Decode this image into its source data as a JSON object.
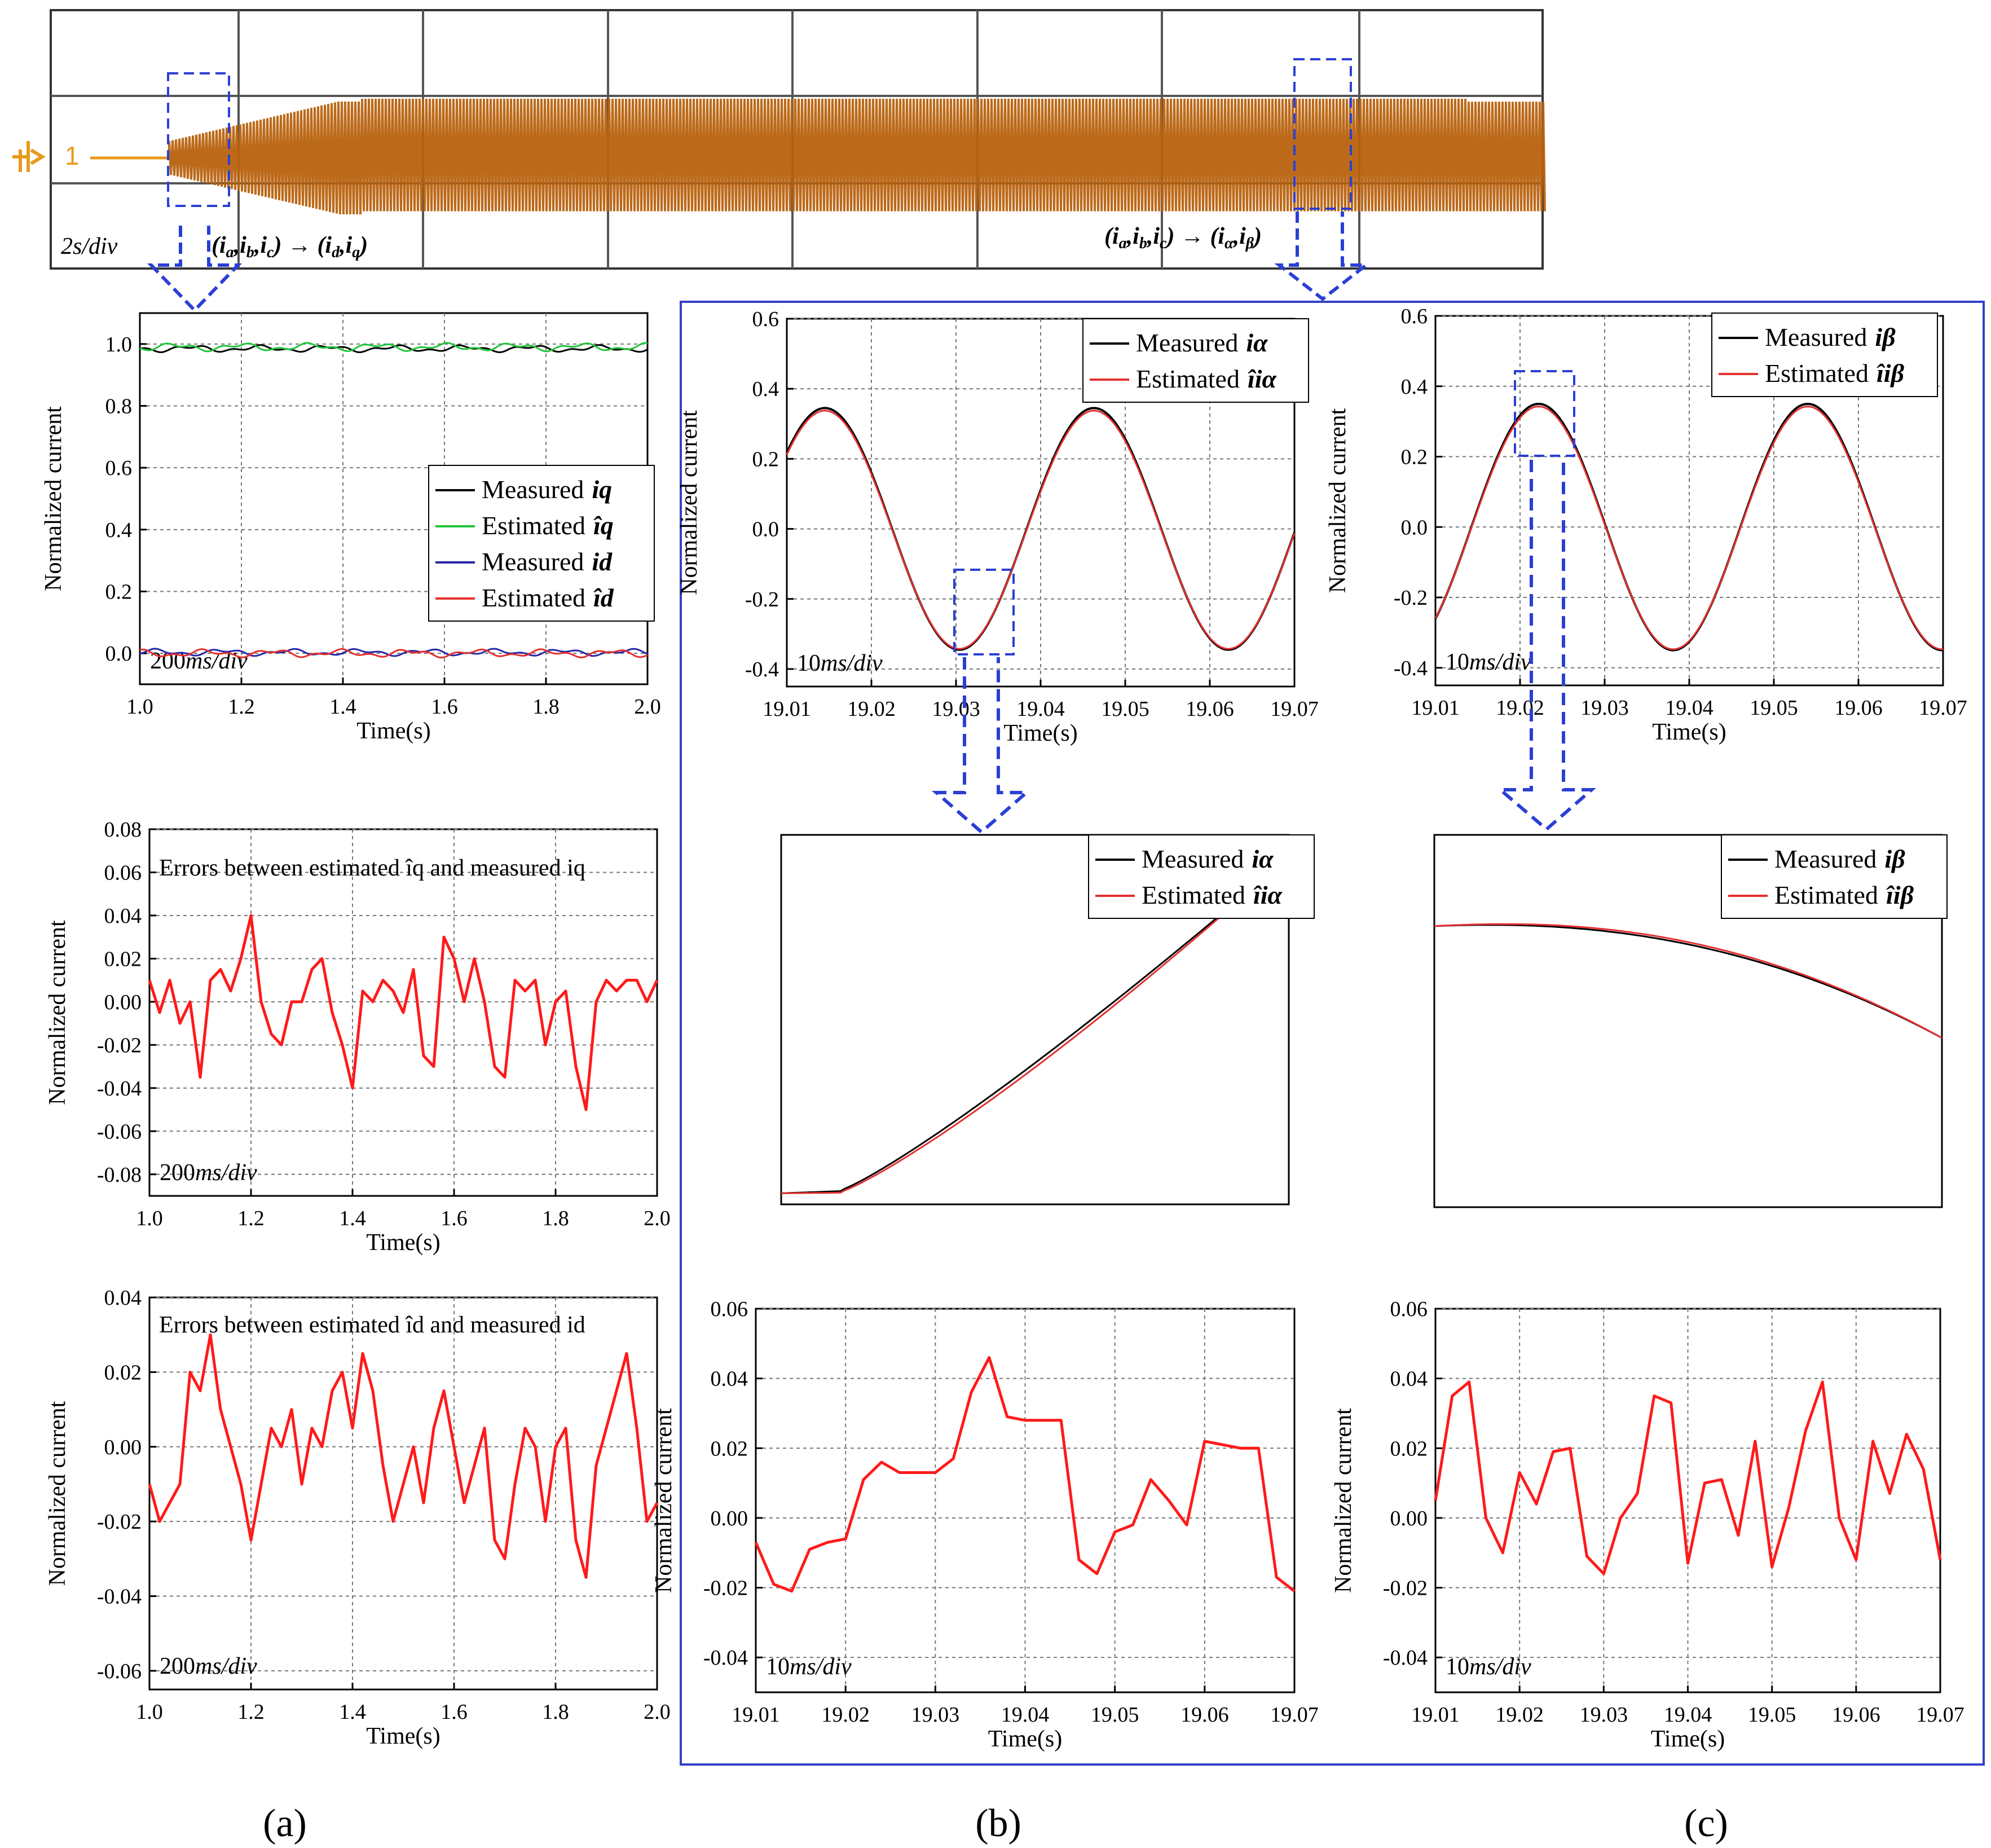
{
  "figure": {
    "panel_labels": [
      "(a)",
      "(b)",
      "(c)"
    ],
    "colors": {
      "measured": "#000000",
      "estimated_green": "#1fc53a",
      "measured_blue": "#2727a8",
      "estimated_red": "#e53030",
      "error_red": "#ff1a1a",
      "osc_trace": "#b8620e",
      "osc_grid": "#555555",
      "zoom_box": "#2a3fd6"
    },
    "oscilloscope": {
      "timescale": "2s/div",
      "channel_label": "1",
      "annotation_left": "(ia,ib,ic)→(id,iq)",
      "annotation_right": "(ia,ib,ic)→(iα,iβ)"
    }
  },
  "chart_data": [
    {
      "id": "oscilloscope",
      "type": "line",
      "title": "",
      "xlabel": "",
      "ylabel": "",
      "timescale": "2s/div",
      "divisions_x": 8,
      "divisions_y": 3,
      "description_series": [
        {
          "name": "phase current",
          "start_div": 0.58,
          "ramp_end_div": 1.6
        }
      ]
    },
    {
      "id": "a1",
      "type": "line",
      "xlabel": "Time(s)",
      "ylabel": "Normalized current",
      "xlim": [
        1.0,
        2.0
      ],
      "ylim": [
        -0.1,
        1.1
      ],
      "xticks": [
        "1.0",
        "1.2",
        "1.4",
        "1.6",
        "1.8",
        "2.0"
      ],
      "yticks": [
        "0.0",
        "0.2",
        "0.4",
        "0.6",
        "0.8",
        "1.0"
      ],
      "timescale": "200ms/div",
      "legend": [
        "Measured",
        "Estimated",
        "Measured",
        "Estimated"
      ],
      "legend_symbols": [
        "iq",
        "îq",
        "id",
        "îd"
      ],
      "series": [
        {
          "name": "Measured iq",
          "base": 0.985,
          "amp": 0.012
        },
        {
          "name": "Estimated îq",
          "base": 0.99,
          "amp": 0.014
        },
        {
          "name": "Measured id",
          "base": 0.003,
          "amp": 0.012
        },
        {
          "name": "Estimated îd",
          "base": 0.0,
          "amp": 0.014
        }
      ]
    },
    {
      "id": "a2",
      "type": "line",
      "xlabel": "Time(s)",
      "ylabel": "Normalized current",
      "xlim": [
        1.0,
        2.0
      ],
      "ylim": [
        -0.09,
        0.08
      ],
      "xticks": [
        "1.0",
        "1.2",
        "1.4",
        "1.6",
        "1.8",
        "2.0"
      ],
      "yticks": [
        "0.08",
        "0.06",
        "0.04",
        "0.02",
        "0.00",
        "-0.02",
        "-0.04",
        "-0.06",
        "-0.08"
      ],
      "timescale": "200ms/div",
      "annotation": "Errors between estimated îq and measured iq",
      "x": [
        1.0,
        1.02,
        1.04,
        1.06,
        1.08,
        1.1,
        1.12,
        1.14,
        1.16,
        1.18,
        1.2,
        1.22,
        1.24,
        1.26,
        1.28,
        1.3,
        1.32,
        1.34,
        1.36,
        1.38,
        1.4,
        1.42,
        1.44,
        1.46,
        1.48,
        1.5,
        1.52,
        1.54,
        1.56,
        1.58,
        1.6,
        1.62,
        1.64,
        1.66,
        1.68,
        1.7,
        1.72,
        1.74,
        1.76,
        1.78,
        1.8,
        1.82,
        1.84,
        1.86,
        1.88,
        1.9,
        1.92,
        1.94,
        1.96,
        1.98,
        2.0
      ],
      "values": [
        0.01,
        -0.005,
        0.01,
        -0.01,
        0.0,
        -0.035,
        0.01,
        0.015,
        0.005,
        0.02,
        0.04,
        0.0,
        -0.015,
        -0.02,
        0.0,
        0.0,
        0.015,
        0.02,
        -0.005,
        -0.02,
        -0.04,
        0.005,
        0.0,
        0.01,
        0.005,
        -0.005,
        0.015,
        -0.025,
        -0.03,
        0.03,
        0.02,
        0.0,
        0.02,
        0.0,
        -0.03,
        -0.035,
        0.01,
        0.005,
        0.01,
        -0.02,
        0.0,
        0.005,
        -0.03,
        -0.05,
        0.0,
        0.01,
        0.005,
        0.01,
        0.01,
        0.0,
        0.01
      ]
    },
    {
      "id": "a3",
      "type": "line",
      "xlabel": "Time(s)",
      "ylabel": "Normalized current",
      "xlim": [
        1.0,
        2.0
      ],
      "ylim": [
        -0.065,
        0.04
      ],
      "xticks": [
        "1.0",
        "1.2",
        "1.4",
        "1.6",
        "1.8",
        "2.0"
      ],
      "yticks": [
        "0.04",
        "0.02",
        "0.00",
        "-0.02",
        "-0.04",
        "-0.06"
      ],
      "timescale": "200ms/div",
      "annotation": "Errors between estimated îd and measured id",
      "x": [
        1.0,
        1.02,
        1.04,
        1.06,
        1.08,
        1.1,
        1.12,
        1.14,
        1.16,
        1.18,
        1.2,
        1.22,
        1.24,
        1.26,
        1.28,
        1.3,
        1.32,
        1.34,
        1.36,
        1.38,
        1.4,
        1.42,
        1.44,
        1.46,
        1.48,
        1.5,
        1.52,
        1.54,
        1.56,
        1.58,
        1.6,
        1.62,
        1.64,
        1.66,
        1.68,
        1.7,
        1.72,
        1.74,
        1.76,
        1.78,
        1.8,
        1.82,
        1.84,
        1.86,
        1.88,
        1.9,
        1.92,
        1.94,
        1.96,
        1.98,
        2.0
      ],
      "values": [
        -0.01,
        -0.02,
        -0.015,
        -0.01,
        0.02,
        0.015,
        0.03,
        0.01,
        0.0,
        -0.01,
        -0.025,
        -0.01,
        0.005,
        0.0,
        0.01,
        -0.01,
        0.005,
        0.0,
        0.015,
        0.02,
        0.005,
        0.025,
        0.015,
        -0.005,
        -0.02,
        -0.01,
        0.0,
        -0.015,
        0.005,
        0.015,
        0.0,
        -0.015,
        -0.005,
        0.005,
        -0.025,
        -0.03,
        -0.01,
        0.005,
        0.0,
        -0.02,
        0.0,
        0.005,
        -0.025,
        -0.035,
        -0.005,
        0.005,
        0.015,
        0.025,
        0.005,
        -0.02,
        -0.015
      ]
    },
    {
      "id": "b1",
      "type": "line",
      "xlabel": "Time(s)",
      "ylabel": "Normalized current",
      "xlim": [
        19.01,
        19.07
      ],
      "ylim": [
        -0.45,
        0.6
      ],
      "xticks": [
        "19.01",
        "19.02",
        "19.03",
        "19.04",
        "19.05",
        "19.06",
        "19.07"
      ],
      "yticks": [
        "0.6",
        "0.4",
        "0.2",
        "0.0",
        "-0.2",
        "-0.4"
      ],
      "timescale": "10ms/div",
      "legend": [
        "Measured",
        "Estimated"
      ],
      "legend_symbols": [
        "iα",
        "îiα"
      ],
      "series": [
        {
          "name": "Measured iα",
          "amplitude": 0.345,
          "period_s": 0.0318,
          "peak_time": 19.0145
        },
        {
          "name": "Estimated îiα",
          "amplitude": 0.34,
          "period_s": 0.0318,
          "peak_time": 19.0145
        }
      ]
    },
    {
      "id": "c1",
      "type": "line",
      "xlabel": "Time(s)",
      "ylabel": "Normalized current",
      "xlim": [
        19.01,
        19.07
      ],
      "ylim": [
        -0.45,
        0.6
      ],
      "xticks": [
        "19.01",
        "19.02",
        "19.03",
        "19.04",
        "19.05",
        "19.06",
        "19.07"
      ],
      "yticks": [
        "0.6",
        "0.4",
        "0.2",
        "0.0",
        "-0.2",
        "-0.4"
      ],
      "timescale": "10ms/div",
      "legend": [
        "Measured",
        "Estimated"
      ],
      "legend_symbols": [
        "iβ",
        "îiβ"
      ],
      "series": [
        {
          "name": "Measured iβ",
          "amplitude": 0.35,
          "period_s": 0.0318,
          "peak_time": 19.0222
        },
        {
          "name": "Estimated îiβ",
          "amplitude": 0.345,
          "period_s": 0.0318,
          "peak_time": 19.0222
        }
      ]
    },
    {
      "id": "b2",
      "type": "line",
      "xlabel": "",
      "ylabel": "",
      "legend": [
        "Measured",
        "Estimated"
      ],
      "legend_symbols": [
        "iα",
        "îiα"
      ]
    },
    {
      "id": "c2",
      "type": "line",
      "xlabel": "",
      "ylabel": "",
      "legend": [
        "Measured",
        "Estimated"
      ],
      "legend_symbols": [
        "iβ",
        "îiβ"
      ]
    },
    {
      "id": "b3",
      "type": "line",
      "xlabel": "Time(s)",
      "ylabel": "Normalized current",
      "xlim": [
        19.01,
        19.07
      ],
      "ylim": [
        -0.05,
        0.06
      ],
      "xticks": [
        "19.01",
        "19.02",
        "19.03",
        "19.04",
        "19.05",
        "19.06",
        "19.07"
      ],
      "yticks": [
        "0.06",
        "0.04",
        "0.02",
        "0.00",
        "-0.02",
        "-0.04"
      ],
      "timescale": "10ms/div",
      "x": [
        19.01,
        19.012,
        19.014,
        19.016,
        19.018,
        19.02,
        19.022,
        19.024,
        19.026,
        19.028,
        19.03,
        19.032,
        19.034,
        19.036,
        19.038,
        19.04,
        19.042,
        19.044,
        19.046,
        19.048,
        19.05,
        19.052,
        19.054,
        19.056,
        19.058,
        19.06,
        19.062,
        19.064,
        19.066,
        19.068,
        19.07
      ],
      "values": [
        -0.007,
        -0.019,
        -0.021,
        -0.009,
        -0.007,
        -0.006,
        0.011,
        0.016,
        0.013,
        0.013,
        0.013,
        0.017,
        0.036,
        0.046,
        0.029,
        0.028,
        0.028,
        0.028,
        -0.012,
        -0.016,
        -0.004,
        -0.002,
        0.011,
        0.005,
        -0.002,
        0.022,
        0.021,
        0.02,
        0.02,
        -0.017,
        -0.021
      ]
    },
    {
      "id": "c3",
      "type": "line",
      "xlabel": "Time(s)",
      "ylabel": "Normalized current",
      "xlim": [
        19.01,
        19.07
      ],
      "ylim": [
        -0.05,
        0.06
      ],
      "xticks": [
        "19.01",
        "19.02",
        "19.03",
        "19.04",
        "19.05",
        "19.06",
        "19.07"
      ],
      "yticks": [
        "0.06",
        "0.04",
        "0.02",
        "0.00",
        "-0.02",
        "-0.04"
      ],
      "timescale": "10ms/div",
      "x": [
        19.01,
        19.012,
        19.014,
        19.016,
        19.018,
        19.02,
        19.022,
        19.024,
        19.026,
        19.028,
        19.03,
        19.032,
        19.034,
        19.036,
        19.038,
        19.04,
        19.042,
        19.044,
        19.046,
        19.048,
        19.05,
        19.052,
        19.054,
        19.056,
        19.058,
        19.06,
        19.062,
        19.064,
        19.066,
        19.068,
        19.07
      ],
      "values": [
        0.005,
        0.035,
        0.039,
        0.0,
        -0.01,
        0.013,
        0.004,
        0.019,
        0.02,
        -0.011,
        -0.016,
        0.0,
        0.007,
        0.035,
        0.033,
        -0.013,
        0.01,
        0.011,
        -0.005,
        0.022,
        -0.014,
        0.003,
        0.025,
        0.039,
        0.0,
        -0.012,
        0.022,
        0.007,
        0.024,
        0.014,
        -0.012
      ]
    }
  ]
}
